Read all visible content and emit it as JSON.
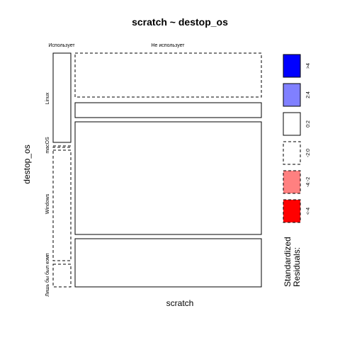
{
  "chart_data": {
    "type": "mosaic",
    "title": "scratch ~ destop_os",
    "xlabel": "scratch",
    "ylabel": "destop_os",
    "x_categories": [
      "Использует",
      "Не использует"
    ],
    "y_categories": [
      "Linux",
      "macOS",
      "Windows",
      "Лишь бы был комп"
    ],
    "cells": [
      {
        "scratch": "Использует",
        "destop_os": "Linux",
        "residual_class": "0:2"
      },
      {
        "scratch": "Использует",
        "destop_os": "macOS",
        "residual_class": "-2:0"
      },
      {
        "scratch": "Использует",
        "destop_os": "Windows",
        "residual_class": "-2:0"
      },
      {
        "scratch": "Использует",
        "destop_os": "Лишь бы был комп",
        "residual_class": "-2:0"
      },
      {
        "scratch": "Не использует",
        "destop_os": "Linux",
        "residual_class": "-2:0"
      },
      {
        "scratch": "Не использует",
        "destop_os": "macOS",
        "residual_class": "0:2"
      },
      {
        "scratch": "Не использует",
        "destop_os": "Windows",
        "residual_class": "0:2"
      },
      {
        "scratch": "Не использует",
        "destop_os": "Лишь бы был комп",
        "residual_class": "0:2"
      }
    ],
    "legend": {
      "title_lines": [
        "Standardized",
        "Residuals:"
      ],
      "entries": [
        {
          "label": ">4",
          "fill": "#0000ff",
          "dashed": false
        },
        {
          "label": "2:4",
          "fill": "#8080ff",
          "dashed": false
        },
        {
          "label": "0:2",
          "fill": "#ffffff",
          "dashed": false
        },
        {
          "label": "-2:0",
          "fill": "#ffffff",
          "dashed": true
        },
        {
          "label": "-4:-2",
          "fill": "#ff8080",
          "dashed": true
        },
        {
          "label": "<-4",
          "fill": "#ff0000",
          "dashed": true
        }
      ]
    }
  }
}
